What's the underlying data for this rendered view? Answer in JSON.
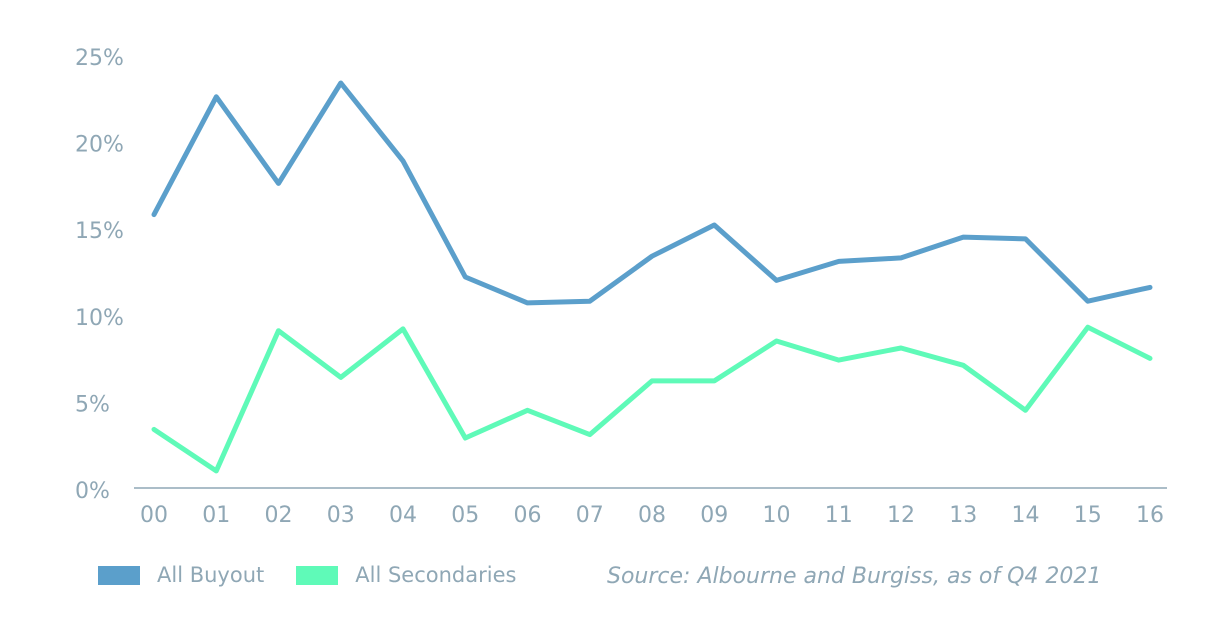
{
  "chart_data": {
    "type": "line",
    "categories": [
      "00",
      "01",
      "02",
      "03",
      "04",
      "05",
      "06",
      "07",
      "08",
      "09",
      "10",
      "11",
      "12",
      "13",
      "14",
      "15",
      "16"
    ],
    "series": [
      {
        "name": "All Buyout",
        "color": "#5b9fcb",
        "values": [
          15.9,
          22.7,
          17.7,
          23.5,
          19.0,
          12.3,
          10.8,
          10.9,
          13.5,
          15.3,
          12.1,
          13.2,
          13.4,
          14.6,
          14.5,
          10.9,
          11.7
        ]
      },
      {
        "name": "All Secondaries",
        "color": "#5ffab8",
        "values": [
          3.5,
          1.1,
          9.2,
          6.5,
          9.3,
          3.0,
          4.6,
          3.2,
          6.3,
          6.3,
          8.6,
          7.5,
          8.2,
          7.2,
          4.6,
          9.4,
          7.6
        ]
      }
    ],
    "ylim": [
      0,
      25
    ],
    "y_ticks": [
      "0%",
      "5%",
      "10%",
      "15%",
      "20%",
      "25%"
    ],
    "y_tick_values": [
      0,
      5,
      10,
      15,
      20,
      25
    ],
    "grid": false,
    "legend_position": "bottom-left"
  },
  "source": "Source: Albourne and Burgiss, as of Q4 2021",
  "colors": {
    "axis": "#8fa7b5",
    "text": "#8fa7b5"
  }
}
